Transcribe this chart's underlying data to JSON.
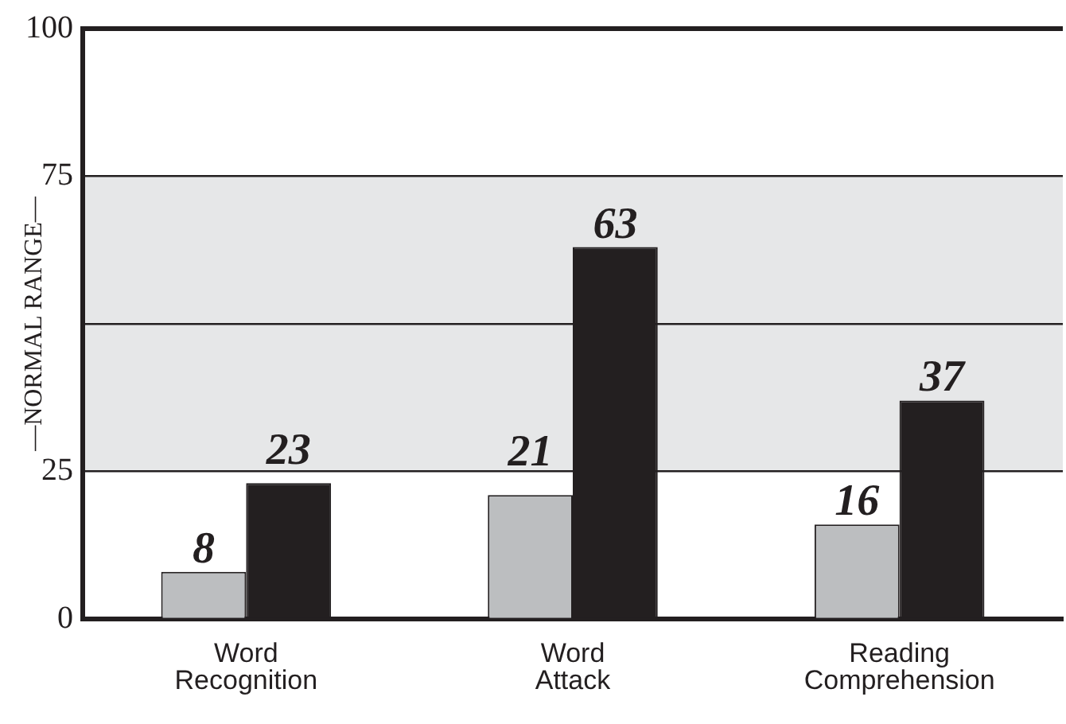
{
  "chart_data": {
    "type": "bar",
    "categories": [
      "Word Recognition",
      "Word Attack",
      "Reading Comprehension"
    ],
    "series": [
      {
        "color": "#bcbec0",
        "values": [
          8,
          21,
          16
        ]
      },
      {
        "color": "#231f20",
        "values": [
          23,
          63,
          37
        ]
      }
    ],
    "ylim": [
      0,
      100
    ],
    "yticks": [
      0,
      25,
      {
        "value": 50,
        "label": null
      },
      75,
      100
    ],
    "grid": "y",
    "data_labels": true,
    "bands": [
      {
        "axis": "y",
        "from": 25,
        "to": 75,
        "label": "—NORMAL RANGE—",
        "color": "#e6e7e8"
      }
    ]
  }
}
